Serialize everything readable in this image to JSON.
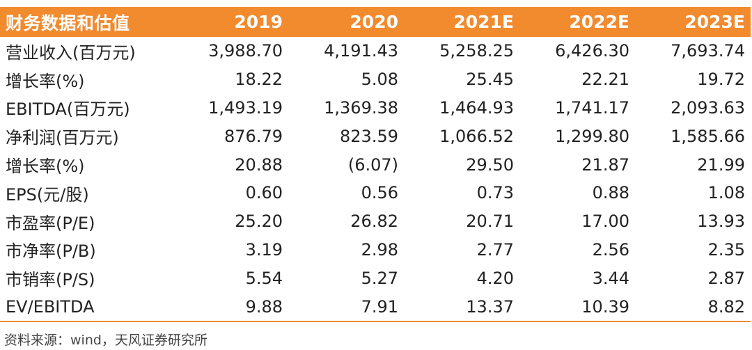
{
  "table": {
    "header": [
      "财务数据和估值",
      "2019",
      "2020",
      "2021E",
      "2022E",
      "2023E"
    ],
    "rows": [
      [
        "营业收入(百万元)",
        "3,988.70",
        "4,191.43",
        "5,258.25",
        "6,426.30",
        "7,693.74"
      ],
      [
        "增长率(%)",
        "18.22",
        "5.08",
        "25.45",
        "22.21",
        "19.72"
      ],
      [
        "EBITDA(百万元)",
        "1,493.19",
        "1,369.38",
        "1,464.93",
        "1,741.17",
        "2,093.63"
      ],
      [
        "净利润(百万元)",
        "876.79",
        "823.59",
        "1,066.52",
        "1,299.80",
        "1,585.66"
      ],
      [
        "增长率(%)",
        "20.88",
        "(6.07)",
        "29.50",
        "21.87",
        "21.99"
      ],
      [
        "EPS(元/股)",
        "0.60",
        "0.56",
        "0.73",
        "0.88",
        "1.08"
      ],
      [
        "市盈率(P/E)",
        "25.20",
        "26.82",
        "20.71",
        "17.00",
        "13.93"
      ],
      [
        "市净率(P/B)",
        "3.19",
        "2.98",
        "2.77",
        "2.56",
        "2.35"
      ],
      [
        "市销率(P/S)",
        "5.54",
        "5.27",
        "4.20",
        "3.44",
        "2.87"
      ],
      [
        "EV/EBITDA",
        "9.88",
        "7.91",
        "13.37",
        "10.39",
        "8.82"
      ]
    ]
  },
  "source": "资料来源：wind，天风证券研究所",
  "colors": {
    "header_bg": "#f28a2e",
    "header_text": "#ffffff",
    "rule": "#f28a2e"
  }
}
